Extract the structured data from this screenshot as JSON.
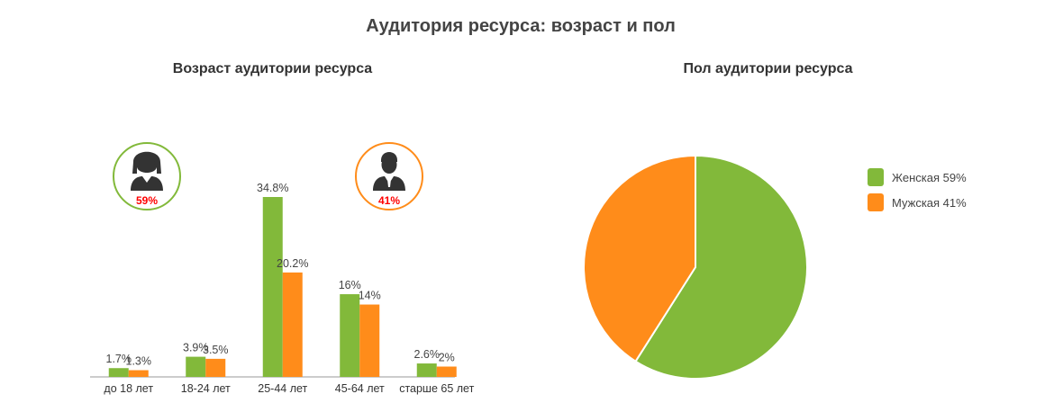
{
  "title": "Аудитория ресурса: возраст и пол",
  "colors": {
    "female": "#82b93a",
    "male": "#ff8c1a",
    "axis": "#999999"
  },
  "badges": {
    "female": {
      "icon": "woman-icon",
      "percent": "59%"
    },
    "male": {
      "icon": "man-icon",
      "percent": "41%"
    }
  },
  "chart_data": [
    {
      "type": "bar",
      "title": "Возраст аудитории ресурса",
      "categories": [
        "до 18 лет",
        "18-24 лет",
        "25-44 лет",
        "45-64 лет",
        "старше 65 лет"
      ],
      "series": [
        {
          "values": [
            1.7,
            3.9,
            34.8,
            16,
            2.6
          ],
          "labels": [
            "1.7%",
            "3.9%",
            "34.8%",
            "16%",
            "2.6%"
          ]
        },
        {
          "values": [
            1.3,
            3.5,
            20.2,
            14,
            2
          ],
          "labels": [
            "1.3%",
            "3.5%",
            "20.2%",
            "14%",
            "2%"
          ]
        }
      ],
      "ylim": [
        0,
        34.8
      ],
      "grid": false
    },
    {
      "type": "pie",
      "title": "Пол аудитории ресурса",
      "slices": [
        {
          "name": "Женская 59%",
          "value": 59
        },
        {
          "name": "Мужская 41%",
          "value": 41
        }
      ],
      "legend": "right"
    }
  ]
}
